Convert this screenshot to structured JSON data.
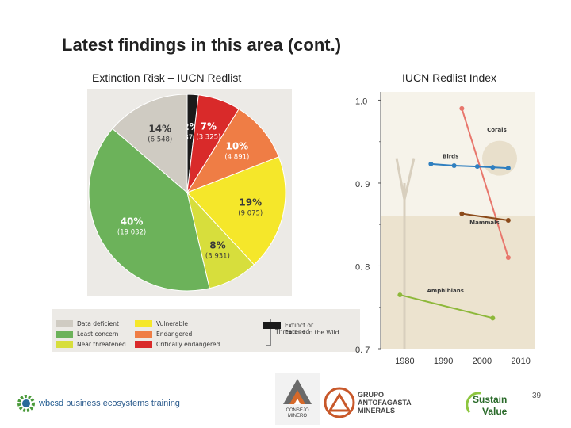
{
  "title": "Latest findings in this area (cont.)",
  "left_subtitle": "Extinction Risk – IUCN Redlist",
  "right_subtitle": "IUCN Redlist Index",
  "page_number": "39",
  "chart_data": [
    {
      "type": "pie",
      "title": "Extinction Risk – IUCN Redlist",
      "slices": [
        {
          "label": "Extinct or Extinct in the Wild",
          "pct": "2%",
          "count": "(875)",
          "value": 875,
          "color": "#1a1a1a"
        },
        {
          "label": "Critically endangered",
          "pct": "7%",
          "count": "(3 325)",
          "value": 3325,
          "color": "#d92a2a"
        },
        {
          "label": "Endangered",
          "pct": "10%",
          "count": "(4 891)",
          "value": 4891,
          "color": "#ef7d45"
        },
        {
          "label": "Vulnerable",
          "pct": "19%",
          "count": "(9 075)",
          "value": 9075,
          "color": "#f5e72a"
        },
        {
          "label": "Near threatened",
          "pct": "8%",
          "count": "(3 931)",
          "value": 3931,
          "color": "#d7de3c"
        },
        {
          "label": "Least concern",
          "pct": "40%",
          "count": "(19 032)",
          "value": 19032,
          "color": "#6cb25a"
        },
        {
          "label": "Data deficient",
          "pct": "14%",
          "count": "(6 548)",
          "value": 6548,
          "color": "#cfcbc2"
        }
      ],
      "legend": {
        "data_deficient": "Data deficient",
        "least_concern": "Least concern",
        "near_threatened": "Near threatened",
        "vulnerable": "Vulnerable",
        "endangered": "Endangered",
        "critically_endangered": "Critically endangered",
        "threatened": "Threatened",
        "extinct": "Extinct or\nExtinct in the Wild"
      }
    },
    {
      "type": "line",
      "title": "IUCN Redlist Index",
      "xlim": [
        1975,
        2015
      ],
      "ylim": [
        0.7,
        1.01
      ],
      "x_ticks": [
        "1980",
        "1990",
        "2000",
        "2010"
      ],
      "y_ticks": [
        "1.0",
        "0. 9",
        "0. 8",
        "0. 7"
      ],
      "series": [
        {
          "name": "Corals",
          "color": "#e8766c",
          "x": [
            1996,
            2008
          ],
          "y": [
            0.99,
            0.81
          ]
        },
        {
          "name": "Birds",
          "color": "#2f7fc0",
          "x": [
            1988,
            1994,
            2000,
            2004,
            2008
          ],
          "y": [
            0.923,
            0.921,
            0.92,
            0.919,
            0.918
          ]
        },
        {
          "name": "Mammals",
          "color": "#8b4a1a",
          "x": [
            1996,
            2008
          ],
          "y": [
            0.863,
            0.855
          ]
        },
        {
          "name": "Amphibians",
          "color": "#8db83a",
          "x": [
            1980,
            2004
          ],
          "y": [
            0.765,
            0.737
          ]
        }
      ]
    }
  ],
  "logos": {
    "wbcsd_text": "business ecosystems training",
    "wbcsd_prefix": "wbcsd",
    "consejo": "CONSEJO\nMINERO",
    "grupo": "GRUPO\nANTOFAGASTA\nMINERALS",
    "sustain": "Sustain",
    "value": "Value"
  }
}
